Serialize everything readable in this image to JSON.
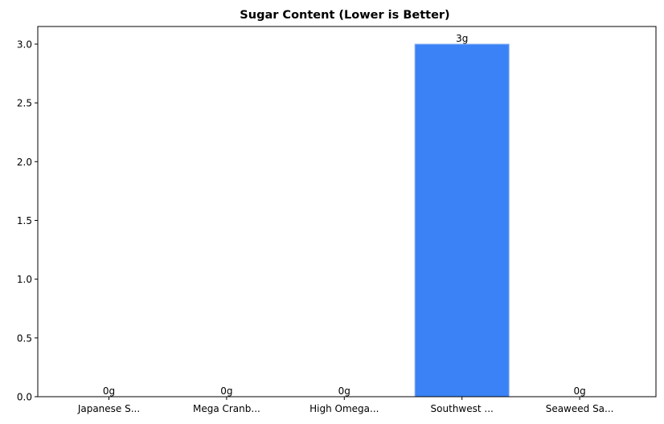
{
  "chart_data": {
    "type": "bar",
    "title": "Sugar Content (Lower is Better)",
    "xlabel": "",
    "ylabel": "",
    "categories": [
      "Japanese S...",
      "Mega Cranb...",
      "High Omega...",
      "Southwest ...",
      "Seaweed Sa..."
    ],
    "values": [
      0,
      0,
      0,
      3,
      0
    ],
    "value_labels": [
      "0g",
      "0g",
      "0g",
      "3g",
      "0g"
    ],
    "ylim": [
      0,
      3.15
    ],
    "yticks": [
      0.0,
      0.5,
      1.0,
      1.5,
      2.0,
      2.5,
      3.0
    ],
    "ytick_labels": [
      "0.0",
      "0.5",
      "1.0",
      "1.5",
      "2.0",
      "2.5",
      "3.0"
    ],
    "grid": false,
    "bar_color": "#3b82f6",
    "bar_edge_color": "#93b4ee"
  }
}
